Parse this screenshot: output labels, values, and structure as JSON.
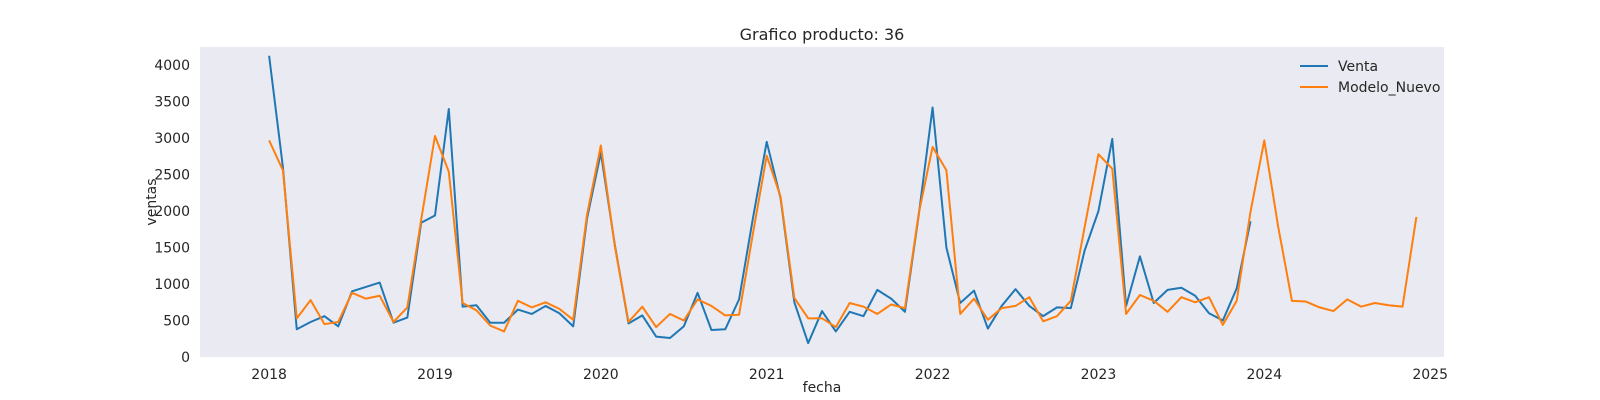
{
  "chart_data": {
    "type": "line",
    "title": "Grafico producto: 36",
    "xlabel": "fecha",
    "ylabel": "ventas",
    "ylim": [
      0,
      4250
    ],
    "xlim": [
      "2017-08-01",
      "2025-02-01"
    ],
    "x_ticks": [
      "2018",
      "2019",
      "2020",
      "2021",
      "2022",
      "2023",
      "2024",
      "2025"
    ],
    "y_ticks": [
      0,
      500,
      1000,
      1500,
      2000,
      2500,
      3000,
      3500,
      4000
    ],
    "grid": false,
    "legend_position": "top-right",
    "background": "#EAEAF2",
    "x_start": "2018-01",
    "x_step": "1 month",
    "series": [
      {
        "name": "Venta",
        "color": "#1f77b4",
        "values": [
          4130,
          2600,
          380,
          480,
          560,
          420,
          900,
          960,
          1020,
          470,
          540,
          1840,
          1940,
          3400,
          690,
          710,
          470,
          470,
          650,
          590,
          700,
          600,
          420,
          1900,
          2800,
          1550,
          460,
          570,
          280,
          260,
          420,
          880,
          370,
          380,
          790,
          1900,
          2950,
          2180,
          750,
          190,
          630,
          350,
          620,
          560,
          920,
          800,
          620,
          1950,
          3420,
          1500,
          740,
          910,
          390,
          700,
          930,
          700,
          560,
          680,
          670,
          1460,
          2000,
          2990,
          700,
          1380,
          740,
          920,
          950,
          840,
          600,
          500,
          940,
          1860
        ]
      },
      {
        "name": "Modelo_Nuevo",
        "color": "#ff7f0e",
        "values": [
          2970,
          2560,
          530,
          780,
          450,
          480,
          880,
          800,
          840,
          480,
          680,
          1880,
          3030,
          2540,
          740,
          640,
          430,
          350,
          770,
          680,
          750,
          660,
          510,
          1950,
          2900,
          1530,
          480,
          690,
          410,
          590,
          500,
          790,
          700,
          570,
          580,
          1690,
          2760,
          2200,
          810,
          530,
          530,
          410,
          740,
          690,
          590,
          720,
          670,
          1970,
          2880,
          2560,
          590,
          800,
          510,
          670,
          700,
          820,
          490,
          560,
          770,
          1780,
          2780,
          2580,
          590,
          850,
          770,
          620,
          820,
          750,
          820,
          440,
          770,
          1990,
          2970,
          1790,
          770,
          760,
          680,
          630,
          790,
          690,
          740,
          710,
          690,
          1920
        ]
      }
    ]
  }
}
